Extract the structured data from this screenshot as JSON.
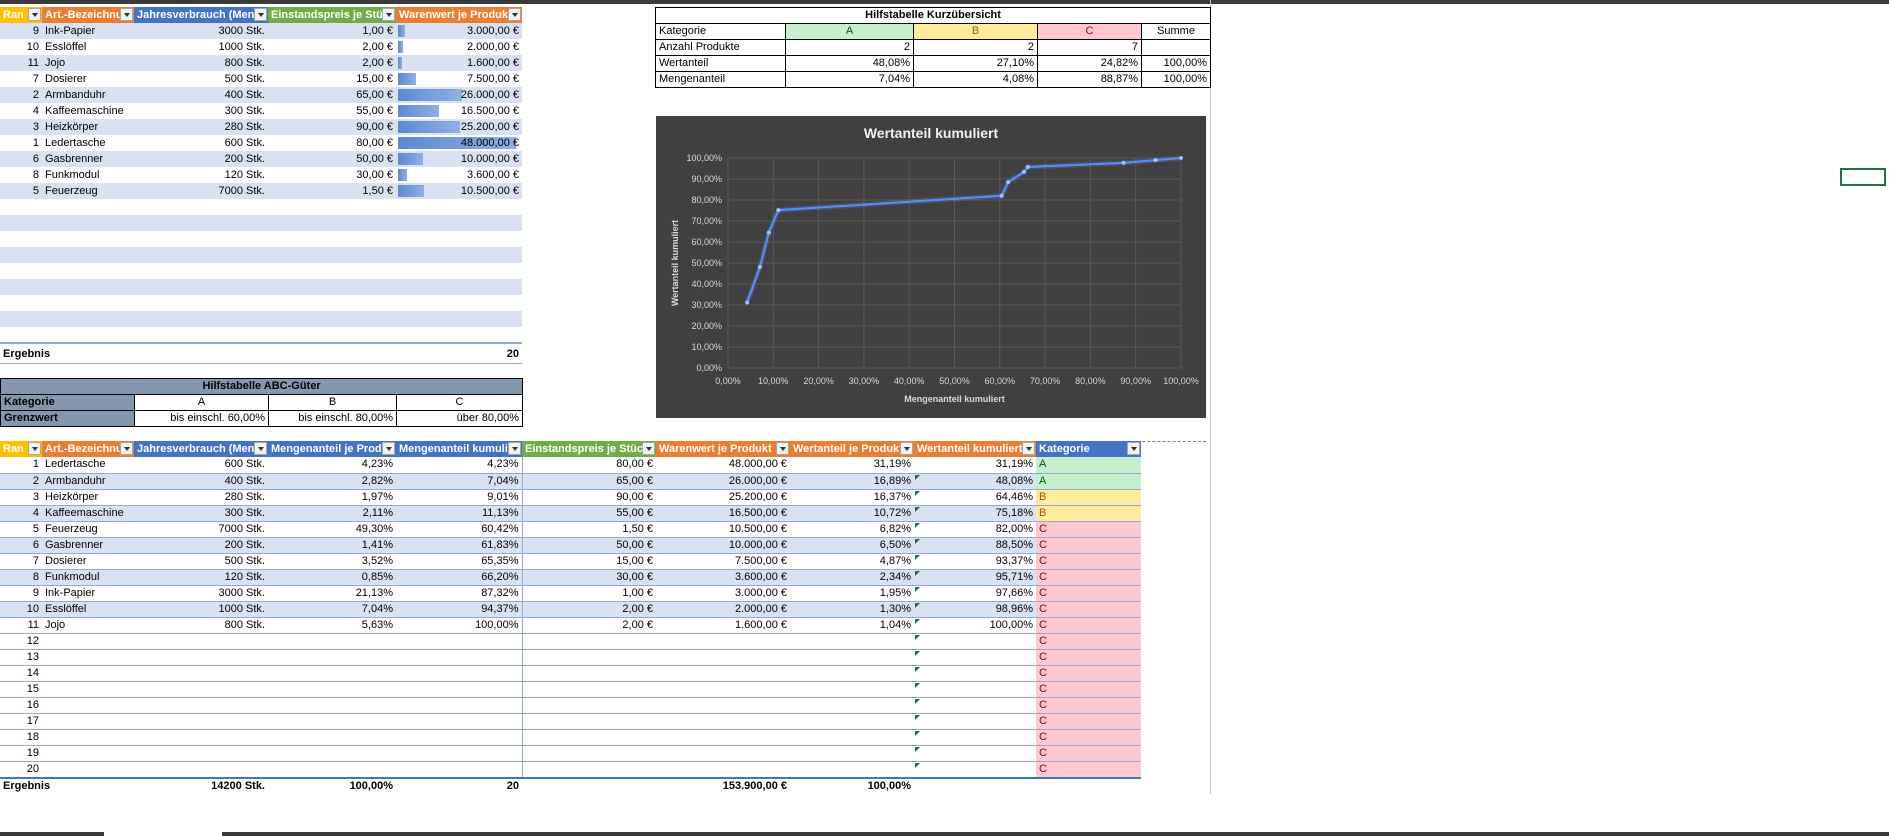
{
  "table1": {
    "headers": [
      "Ran",
      "Art.-Bezeichnu",
      "Jahresverbrauch (Men",
      "Einstandspreis je Stüc",
      "Warenwert je Produk"
    ],
    "rows": [
      {
        "rank": "9",
        "name": "Ink-Papier",
        "qty": "3000 Stk.",
        "price": "1,00 €",
        "value": "3.000,00 €",
        "bar": 0.0625
      },
      {
        "rank": "10",
        "name": "Esslöffel",
        "qty": "1000 Stk.",
        "price": "2,00 €",
        "value": "2.000,00 €",
        "bar": 0.0417
      },
      {
        "rank": "11",
        "name": "Jojo",
        "qty": "800 Stk.",
        "price": "2,00 €",
        "value": "1.600,00 €",
        "bar": 0.0333
      },
      {
        "rank": "7",
        "name": "Dosierer",
        "qty": "500 Stk.",
        "price": "15,00 €",
        "value": "7.500,00 €",
        "bar": 0.156
      },
      {
        "rank": "2",
        "name": "Armbanduhr",
        "qty": "400 Stk.",
        "price": "65,00 €",
        "value": "26.000,00 €",
        "bar": 0.5417
      },
      {
        "rank": "4",
        "name": "Kaffeemaschine",
        "qty": "300 Stk.",
        "price": "55,00 €",
        "value": "16.500,00 €",
        "bar": 0.3437
      },
      {
        "rank": "3",
        "name": "Heizkörper",
        "qty": "280 Stk.",
        "price": "90,00 €",
        "value": "25.200,00 €",
        "bar": 0.525
      },
      {
        "rank": "1",
        "name": "Ledertasche",
        "qty": "600 Stk.",
        "price": "80,00 €",
        "value": "48.000,00 €",
        "bar": 1.0
      },
      {
        "rank": "6",
        "name": "Gasbrenner",
        "qty": "200 Stk.",
        "price": "50,00 €",
        "value": "10.000,00 €",
        "bar": 0.2083
      },
      {
        "rank": "8",
        "name": "Funkmodul",
        "qty": "120 Stk.",
        "price": "30,00 €",
        "value": "3.600,00 €",
        "bar": 0.075
      },
      {
        "rank": "5",
        "name": "Feuerzeug",
        "qty": "7000 Stk.",
        "price": "1,50 €",
        "value": "10.500,00 €",
        "bar": 0.2187
      }
    ],
    "result_label": "Ergebnis",
    "result_value": "20"
  },
  "summary": {
    "title": "Hilfstabelle Kurzübersicht",
    "header": [
      "Kategorie",
      "A",
      "B",
      "C",
      "Summe"
    ],
    "rows": [
      [
        "Anzahl Produkte",
        "2",
        "2",
        "7",
        ""
      ],
      [
        "Wertanteil",
        "48,08%",
        "27,10%",
        "24,82%",
        "100,00%"
      ],
      [
        "Mengenanteil",
        "7,04%",
        "4,08%",
        "88,87%",
        "100,00%"
      ]
    ]
  },
  "abc": {
    "title": "Hilfstabelle ABC-Güter",
    "header": [
      "Kategorie",
      "A",
      "B",
      "C"
    ],
    "row": [
      "Grenzwert",
      "bis einschl. 60,00%",
      "bis einschl. 80,00%",
      "über 80,00%"
    ]
  },
  "chart_data": {
    "type": "line",
    "title": "Wertanteil kumuliert",
    "xlabel": "Mengenanteil kumuliert",
    "ylabel": "Wertanteil kumuliert",
    "xlim": [
      0,
      100
    ],
    "ylim": [
      0,
      100
    ],
    "x_ticks": [
      "0,00%",
      "10,00%",
      "20,00%",
      "30,00%",
      "40,00%",
      "50,00%",
      "60,00%",
      "70,00%",
      "80,00%",
      "90,00%",
      "100,00%"
    ],
    "y_ticks": [
      "0,00%",
      "10,00%",
      "20,00%",
      "30,00%",
      "40,00%",
      "50,00%",
      "60,00%",
      "70,00%",
      "80,00%",
      "90,00%",
      "100,00%"
    ],
    "grid": true,
    "series": [
      {
        "x": [
          4.23,
          7.04,
          9.01,
          11.13,
          60.42,
          61.83,
          65.35,
          66.2,
          87.32,
          94.37,
          100.0
        ],
        "y": [
          31.19,
          48.08,
          64.46,
          75.18,
          82.0,
          88.5,
          93.37,
          95.71,
          97.66,
          98.96,
          100.0
        ]
      }
    ]
  },
  "table2": {
    "headers": [
      "Ran",
      "Art.-Bezeichnu",
      "Jahresverbrauch (Meng",
      "Mengenanteil je Produ",
      "Mengenanteil kumuli",
      "Einstandspreis je Stück",
      "Warenwert je Produkt",
      "Wertanteil je Produkt",
      "Wertanteil kumuliert",
      "Kategorie"
    ],
    "rows": [
      {
        "rank": "1",
        "name": "Ledertasche",
        "qty": "600 Stk.",
        "mshare": "4,23%",
        "mcum": "4,23%",
        "price": "80,00 €",
        "value": "48.000,00 €",
        "wshare": "31,19%",
        "wcum": "31,19%",
        "cat": "A"
      },
      {
        "rank": "2",
        "name": "Armbanduhr",
        "qty": "400 Stk.",
        "mshare": "2,82%",
        "mcum": "7,04%",
        "price": "65,00 €",
        "value": "26.000,00 €",
        "wshare": "16,89%",
        "wcum": "48,08%",
        "cat": "A"
      },
      {
        "rank": "3",
        "name": "Heizkörper",
        "qty": "280 Stk.",
        "mshare": "1,97%",
        "mcum": "9,01%",
        "price": "90,00 €",
        "value": "25.200,00 €",
        "wshare": "16,37%",
        "wcum": "64,46%",
        "cat": "B"
      },
      {
        "rank": "4",
        "name": "Kaffeemaschine",
        "qty": "300 Stk.",
        "mshare": "2,11%",
        "mcum": "11,13%",
        "price": "55,00 €",
        "value": "16.500,00 €",
        "wshare": "10,72%",
        "wcum": "75,18%",
        "cat": "B"
      },
      {
        "rank": "5",
        "name": "Feuerzeug",
        "qty": "7000 Stk.",
        "mshare": "49,30%",
        "mcum": "60,42%",
        "price": "1,50 €",
        "value": "10.500,00 €",
        "wshare": "6,82%",
        "wcum": "82,00%",
        "cat": "C"
      },
      {
        "rank": "6",
        "name": "Gasbrenner",
        "qty": "200 Stk.",
        "mshare": "1,41%",
        "mcum": "61,83%",
        "price": "50,00 €",
        "value": "10.000,00 €",
        "wshare": "6,50%",
        "wcum": "88,50%",
        "cat": "C"
      },
      {
        "rank": "7",
        "name": "Dosierer",
        "qty": "500 Stk.",
        "mshare": "3,52%",
        "mcum": "65,35%",
        "price": "15,00 €",
        "value": "7.500,00 €",
        "wshare": "4,87%",
        "wcum": "93,37%",
        "cat": "C"
      },
      {
        "rank": "8",
        "name": "Funkmodul",
        "qty": "120 Stk.",
        "mshare": "0,85%",
        "mcum": "66,20%",
        "price": "30,00 €",
        "value": "3.600,00 €",
        "wshare": "2,34%",
        "wcum": "95,71%",
        "cat": "C"
      },
      {
        "rank": "9",
        "name": "Ink-Papier",
        "qty": "3000 Stk.",
        "mshare": "21,13%",
        "mcum": "87,32%",
        "price": "1,00 €",
        "value": "3.000,00 €",
        "wshare": "1,95%",
        "wcum": "97,66%",
        "cat": "C"
      },
      {
        "rank": "10",
        "name": "Esslöffel",
        "qty": "1000 Stk.",
        "mshare": "7,04%",
        "mcum": "94,37%",
        "price": "2,00 €",
        "value": "2.000,00 €",
        "wshare": "1,30%",
        "wcum": "98,96%",
        "cat": "C"
      },
      {
        "rank": "11",
        "name": "Jojo",
        "qty": "800 Stk.",
        "mshare": "5,63%",
        "mcum": "100,00%",
        "price": "2,00 €",
        "value": "1.600,00 €",
        "wshare": "1,04%",
        "wcum": "100,00%",
        "cat": "C"
      },
      {
        "rank": "12",
        "name": "",
        "qty": "",
        "mshare": "",
        "mcum": "",
        "price": "",
        "value": "",
        "wshare": "",
        "wcum": "",
        "cat": "C"
      },
      {
        "rank": "13",
        "name": "",
        "qty": "",
        "mshare": "",
        "mcum": "",
        "price": "",
        "value": "",
        "wshare": "",
        "wcum": "",
        "cat": "C"
      },
      {
        "rank": "14",
        "name": "",
        "qty": "",
        "mshare": "",
        "mcum": "",
        "price": "",
        "value": "",
        "wshare": "",
        "wcum": "",
        "cat": "C"
      },
      {
        "rank": "15",
        "name": "",
        "qty": "",
        "mshare": "",
        "mcum": "",
        "price": "",
        "value": "",
        "wshare": "",
        "wcum": "",
        "cat": "C"
      },
      {
        "rank": "16",
        "name": "",
        "qty": "",
        "mshare": "",
        "mcum": "",
        "price": "",
        "value": "",
        "wshare": "",
        "wcum": "",
        "cat": "C"
      },
      {
        "rank": "17",
        "name": "",
        "qty": "",
        "mshare": "",
        "mcum": "",
        "price": "",
        "value": "",
        "wshare": "",
        "wcum": "",
        "cat": "C"
      },
      {
        "rank": "18",
        "name": "",
        "qty": "",
        "mshare": "",
        "mcum": "",
        "price": "",
        "value": "",
        "wshare": "",
        "wcum": "",
        "cat": "C"
      },
      {
        "rank": "19",
        "name": "",
        "qty": "",
        "mshare": "",
        "mcum": "",
        "price": "",
        "value": "",
        "wshare": "",
        "wcum": "",
        "cat": "C"
      },
      {
        "rank": "20",
        "name": "",
        "qty": "",
        "mshare": "",
        "mcum": "",
        "price": "",
        "value": "",
        "wshare": "",
        "wcum": "",
        "cat": "C"
      }
    ],
    "result": {
      "label": "Ergebnis",
      "qty": "14200 Stk.",
      "mshare": "100,00%",
      "mcum": "20",
      "value": "153.900,00 €",
      "wshare": "100,00%"
    }
  }
}
